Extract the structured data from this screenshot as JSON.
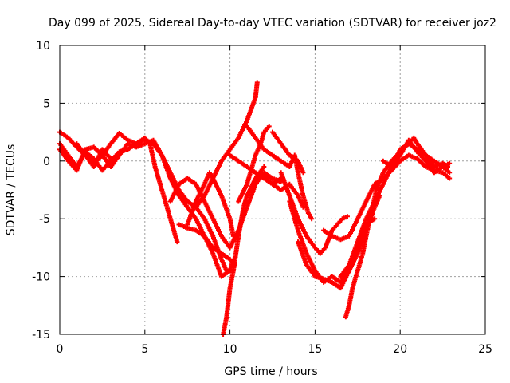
{
  "chart_data": {
    "type": "scatter",
    "title": "Day 099 of 2025, Sidereal Day-to-day VTEC variation (SDTVAR) for receiver joz2",
    "xlabel": "GPS time / hours",
    "ylabel": "SDTVAR / TECUs",
    "xlim": [
      0,
      25
    ],
    "ylim": [
      -15,
      10
    ],
    "xticks": [
      "0",
      "5",
      "10",
      "15",
      "20",
      "25"
    ],
    "yticks": [
      "10",
      "5",
      "0",
      "-5",
      "-10",
      "-15"
    ],
    "xtick_values": [
      0,
      5,
      10,
      15,
      20,
      25
    ],
    "ytick_values": [
      10,
      5,
      0,
      -5,
      -10,
      -15
    ],
    "grid": true,
    "marker": "plus",
    "color": "#ff0000",
    "series": [
      {
        "points": [
          [
            0.0,
            1.5
          ],
          [
            0.5,
            0.5
          ],
          [
            1.0,
            -0.5
          ],
          [
            1.5,
            0.8
          ],
          [
            2.0,
            0.2
          ],
          [
            2.5,
            -0.8
          ],
          [
            3.0,
            0.0
          ],
          [
            3.5,
            0.8
          ],
          [
            4.0,
            1.0
          ],
          [
            4.5,
            1.5
          ],
          [
            5.0,
            1.8
          ],
          [
            5.5,
            1.5
          ],
          [
            6.0,
            0.5
          ],
          [
            6.5,
            -1.5
          ],
          [
            7.0,
            -3.0
          ],
          [
            7.5,
            -4.0
          ],
          [
            8.0,
            -5.0
          ],
          [
            8.5,
            -6.5
          ],
          [
            9.0,
            -8.0
          ],
          [
            9.5,
            -10.0
          ],
          [
            10.0,
            -9.5
          ],
          [
            10.2,
            -8.5
          ]
        ]
      },
      {
        "points": [
          [
            0.0,
            2.5
          ],
          [
            0.5,
            2.0
          ],
          [
            1.0,
            1.2
          ],
          [
            1.5,
            0.5
          ],
          [
            2.0,
            -0.2
          ],
          [
            2.5,
            0.5
          ],
          [
            3.0,
            1.5
          ],
          [
            3.5,
            2.4
          ],
          [
            4.0,
            1.8
          ],
          [
            4.5,
            1.5
          ],
          [
            5.0,
            2.0
          ],
          [
            5.3,
            1.5
          ],
          [
            5.6,
            -0.5
          ],
          [
            6.0,
            -2.5
          ],
          [
            6.5,
            -5.0
          ],
          [
            6.9,
            -7.0
          ]
        ]
      },
      {
        "points": [
          [
            0.0,
            1.0
          ],
          [
            0.5,
            0.0
          ],
          [
            1.0,
            -0.8
          ],
          [
            1.5,
            1.0
          ],
          [
            2.0,
            1.2
          ],
          [
            2.5,
            0.5
          ],
          [
            3.0,
            -0.5
          ],
          [
            3.5,
            0.5
          ],
          [
            4.0,
            1.5
          ],
          [
            4.5,
            1.2
          ],
          [
            5.0,
            1.5
          ],
          [
            5.5,
            1.8
          ],
          [
            6.0,
            0.5
          ],
          [
            6.5,
            -1.0
          ],
          [
            7.0,
            -2.5
          ],
          [
            7.5,
            -3.5
          ],
          [
            8.0,
            -4.0
          ],
          [
            8.5,
            -5.0
          ],
          [
            9.0,
            -6.5
          ],
          [
            9.5,
            -8.5
          ],
          [
            9.8,
            -9.5
          ]
        ]
      },
      {
        "points": [
          [
            1.0,
            1.5
          ],
          [
            1.5,
            0.5
          ],
          [
            2.0,
            -0.5
          ],
          [
            2.5,
            1.0
          ],
          [
            3.0,
            0.2
          ]
        ]
      },
      {
        "points": [
          [
            6.5,
            -3.5
          ],
          [
            7.0,
            -2.0
          ],
          [
            7.5,
            -1.5
          ],
          [
            8.0,
            -2.0
          ],
          [
            8.5,
            -3.5
          ],
          [
            9.0,
            -5.0
          ],
          [
            9.5,
            -6.5
          ],
          [
            10.0,
            -7.5
          ],
          [
            10.5,
            -6.0
          ],
          [
            11.0,
            -4.0
          ],
          [
            11.5,
            -2.0
          ],
          [
            12.0,
            -1.0
          ],
          [
            12.5,
            -1.5
          ],
          [
            13.0,
            -1.8
          ]
        ]
      },
      {
        "points": [
          [
            7.5,
            -5.5
          ],
          [
            8.0,
            -3.5
          ],
          [
            8.5,
            -2.0
          ],
          [
            8.8,
            -1.0
          ],
          [
            9.0,
            -1.5
          ],
          [
            9.5,
            -3.0
          ],
          [
            10.0,
            -5.0
          ],
          [
            10.2,
            -6.5
          ]
        ]
      },
      {
        "points": [
          [
            7.0,
            -5.5
          ],
          [
            7.5,
            -5.8
          ],
          [
            8.0,
            -6.0
          ],
          [
            8.5,
            -6.5
          ],
          [
            9.0,
            -7.5
          ],
          [
            9.5,
            -8.0
          ],
          [
            10.0,
            -8.5
          ],
          [
            10.3,
            -9.0
          ]
        ]
      },
      {
        "points": [
          [
            8.0,
            -4.0
          ],
          [
            8.5,
            -3.0
          ],
          [
            9.0,
            -1.5
          ],
          [
            9.5,
            0.0
          ],
          [
            10.0,
            1.0
          ],
          [
            10.5,
            2.0
          ],
          [
            11.0,
            3.5
          ],
          [
            11.5,
            5.5
          ],
          [
            11.6,
            6.8
          ]
        ]
      },
      {
        "points": [
          [
            9.6,
            -15.0
          ],
          [
            9.8,
            -13.5
          ],
          [
            10.0,
            -11.0
          ],
          [
            10.2,
            -9.5
          ],
          [
            10.5,
            -6.5
          ],
          [
            10.8,
            -4.0
          ],
          [
            11.0,
            -3.0
          ],
          [
            11.5,
            -1.5
          ],
          [
            12.0,
            -0.5
          ]
        ]
      },
      {
        "points": [
          [
            10.0,
            0.5
          ],
          [
            10.5,
            0.0
          ],
          [
            11.0,
            -0.5
          ],
          [
            11.5,
            -1.0
          ],
          [
            12.0,
            -1.5
          ],
          [
            12.5,
            -2.0
          ],
          [
            13.0,
            -1.5
          ]
        ]
      },
      {
        "points": [
          [
            10.5,
            -3.5
          ],
          [
            11.0,
            -2.0
          ],
          [
            11.2,
            -1.0
          ],
          [
            11.5,
            0.5
          ],
          [
            11.8,
            1.5
          ],
          [
            12.0,
            2.5
          ],
          [
            12.3,
            3.0
          ]
        ]
      },
      {
        "points": [
          [
            11.0,
            3.0
          ],
          [
            11.5,
            2.0
          ],
          [
            12.0,
            1.0
          ],
          [
            12.5,
            0.5
          ],
          [
            13.0,
            0.0
          ],
          [
            13.5,
            -0.5
          ],
          [
            13.8,
            0.5
          ],
          [
            14.0,
            -1.0
          ],
          [
            14.3,
            -3.0
          ],
          [
            14.6,
            -4.5
          ],
          [
            14.8,
            -5.0
          ]
        ]
      },
      {
        "points": [
          [
            12.0,
            -1.2
          ],
          [
            12.5,
            -2.0
          ],
          [
            13.0,
            -2.5
          ],
          [
            13.5,
            -2.0
          ],
          [
            14.0,
            -3.0
          ],
          [
            14.3,
            -4.0
          ]
        ]
      },
      {
        "points": [
          [
            12.5,
            2.5
          ],
          [
            13.0,
            1.5
          ],
          [
            13.5,
            0.5
          ],
          [
            14.0,
            0.0
          ],
          [
            14.3,
            -1.0
          ]
        ]
      },
      {
        "points": [
          [
            13.0,
            -1.0
          ],
          [
            13.5,
            -3.0
          ],
          [
            14.0,
            -5.0
          ],
          [
            14.5,
            -6.5
          ],
          [
            15.0,
            -7.5
          ],
          [
            15.3,
            -8.0
          ],
          [
            15.6,
            -7.5
          ],
          [
            16.0,
            -6.0
          ],
          [
            16.3,
            -5.5
          ],
          [
            16.6,
            -5.0
          ],
          [
            16.9,
            -4.8
          ]
        ]
      },
      {
        "points": [
          [
            13.5,
            -3.5
          ],
          [
            14.0,
            -6.0
          ],
          [
            14.5,
            -8.0
          ],
          [
            15.0,
            -9.5
          ],
          [
            15.5,
            -10.5
          ],
          [
            16.0,
            -10.0
          ],
          [
            16.5,
            -10.5
          ],
          [
            17.0,
            -9.5
          ],
          [
            17.5,
            -7.5
          ],
          [
            18.0,
            -5.5
          ],
          [
            18.5,
            -5.0
          ]
        ]
      },
      {
        "points": [
          [
            14.0,
            -7.0
          ],
          [
            14.5,
            -9.0
          ],
          [
            15.0,
            -10.0
          ],
          [
            15.5,
            -10.2
          ],
          [
            16.0,
            -10.5
          ],
          [
            16.5,
            -11.0
          ],
          [
            17.0,
            -9.5
          ],
          [
            17.5,
            -8.0
          ],
          [
            18.0,
            -6.0
          ],
          [
            18.5,
            -4.0
          ],
          [
            18.8,
            -3.0
          ]
        ]
      },
      {
        "points": [
          [
            15.5,
            -6.0
          ],
          [
            16.0,
            -6.5
          ],
          [
            16.5,
            -6.8
          ],
          [
            17.0,
            -6.5
          ],
          [
            17.5,
            -5.0
          ],
          [
            18.0,
            -3.5
          ],
          [
            18.5,
            -2.0
          ],
          [
            19.0,
            -1.5
          ],
          [
            19.5,
            -0.8
          ],
          [
            20.0,
            0.0
          ],
          [
            20.5,
            0.5
          ],
          [
            21.0,
            0.2
          ],
          [
            21.5,
            -0.5
          ],
          [
            22.0,
            -0.8
          ],
          [
            22.5,
            -1.0
          ],
          [
            22.9,
            -1.5
          ]
        ]
      },
      {
        "points": [
          [
            16.8,
            -13.5
          ],
          [
            17.0,
            -12.5
          ],
          [
            17.2,
            -11.0
          ],
          [
            17.5,
            -9.5
          ],
          [
            17.8,
            -8.0
          ],
          [
            18.0,
            -6.5
          ],
          [
            18.3,
            -4.5
          ],
          [
            18.6,
            -2.5
          ],
          [
            19.0,
            -1.0
          ],
          [
            19.5,
            0.0
          ],
          [
            20.0,
            0.8
          ],
          [
            20.5,
            1.5
          ],
          [
            20.8,
            2.0
          ],
          [
            21.0,
            1.5
          ],
          [
            21.5,
            0.5
          ],
          [
            22.0,
            0.0
          ],
          [
            22.5,
            -0.5
          ],
          [
            22.9,
            -0.2
          ]
        ]
      },
      {
        "points": [
          [
            16.5,
            -10.0
          ],
          [
            17.0,
            -9.0
          ],
          [
            17.5,
            -7.0
          ],
          [
            18.0,
            -5.0
          ],
          [
            18.5,
            -3.5
          ],
          [
            19.0,
            -2.0
          ],
          [
            19.5,
            -0.5
          ],
          [
            20.0,
            1.0
          ],
          [
            20.5,
            1.5
          ],
          [
            21.0,
            1.0
          ],
          [
            21.5,
            0.5
          ],
          [
            22.0,
            -0.5
          ],
          [
            22.5,
            -0.2
          ],
          [
            22.8,
            -0.5
          ]
        ]
      },
      {
        "points": [
          [
            19.0,
            0.0
          ],
          [
            19.5,
            -0.5
          ],
          [
            20.0,
            0.5
          ],
          [
            20.5,
            1.8
          ],
          [
            21.0,
            0.8
          ],
          [
            21.5,
            0.0
          ],
          [
            22.0,
            -1.0
          ],
          [
            22.5,
            -0.5
          ],
          [
            22.9,
            -1.0
          ]
        ]
      }
    ]
  }
}
